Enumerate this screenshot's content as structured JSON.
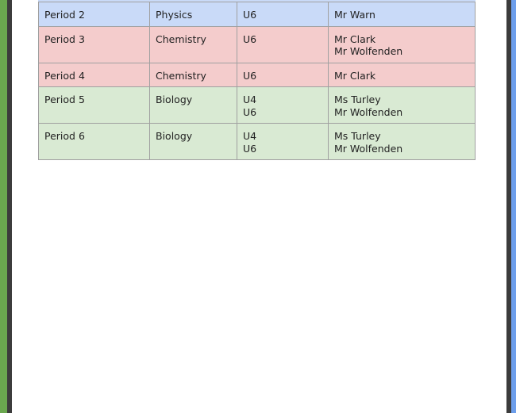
{
  "rows": [
    {
      "period": "Period 2",
      "subject": "Physics",
      "groups": [
        "U6"
      ],
      "teachers": [
        "Mr Warn"
      ],
      "color": "#c9daf8"
    },
    {
      "period": "Period 3",
      "subject": "Chemistry",
      "groups": [
        "U6"
      ],
      "teachers": [
        "Mr Clark",
        "Mr Wolfenden"
      ],
      "color": "#f4cccc"
    },
    {
      "period": "Period 4",
      "subject": "Chemistry",
      "groups": [
        "U6"
      ],
      "teachers": [
        "Mr Clark"
      ],
      "color": "#f4cccc"
    },
    {
      "period": "Period 5",
      "subject": "Biology",
      "groups": [
        "U4",
        "U6"
      ],
      "teachers": [
        "Ms Turley",
        "Mr Wolfenden"
      ],
      "color": "#d9ead3"
    },
    {
      "period": "Period 6",
      "subject": "Biology",
      "groups": [
        "U4",
        "U6"
      ],
      "teachers": [
        "Ms Turley",
        "Mr Wolfenden"
      ],
      "color": "#d9ead3"
    }
  ]
}
